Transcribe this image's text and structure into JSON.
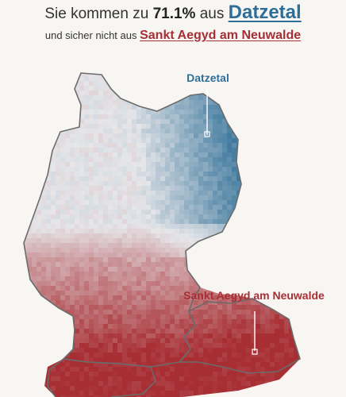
{
  "headline": {
    "prefix": "Sie kommen zu",
    "percent": "71.1%",
    "middle": "aus",
    "best_match": "Datzetal"
  },
  "subline": {
    "prefix": "und sicher nicht aus",
    "worst_match": "Sankt Aegyd am Neuwalde"
  },
  "map": {
    "best_label": "Datzetal",
    "worst_label": "Sankt Aegyd am Neuwalde",
    "colors": {
      "similar": "#2f6f97",
      "neutral": "#e6e6e9",
      "dissimilar": "#a72e33",
      "border": "#6b6b6b"
    }
  }
}
